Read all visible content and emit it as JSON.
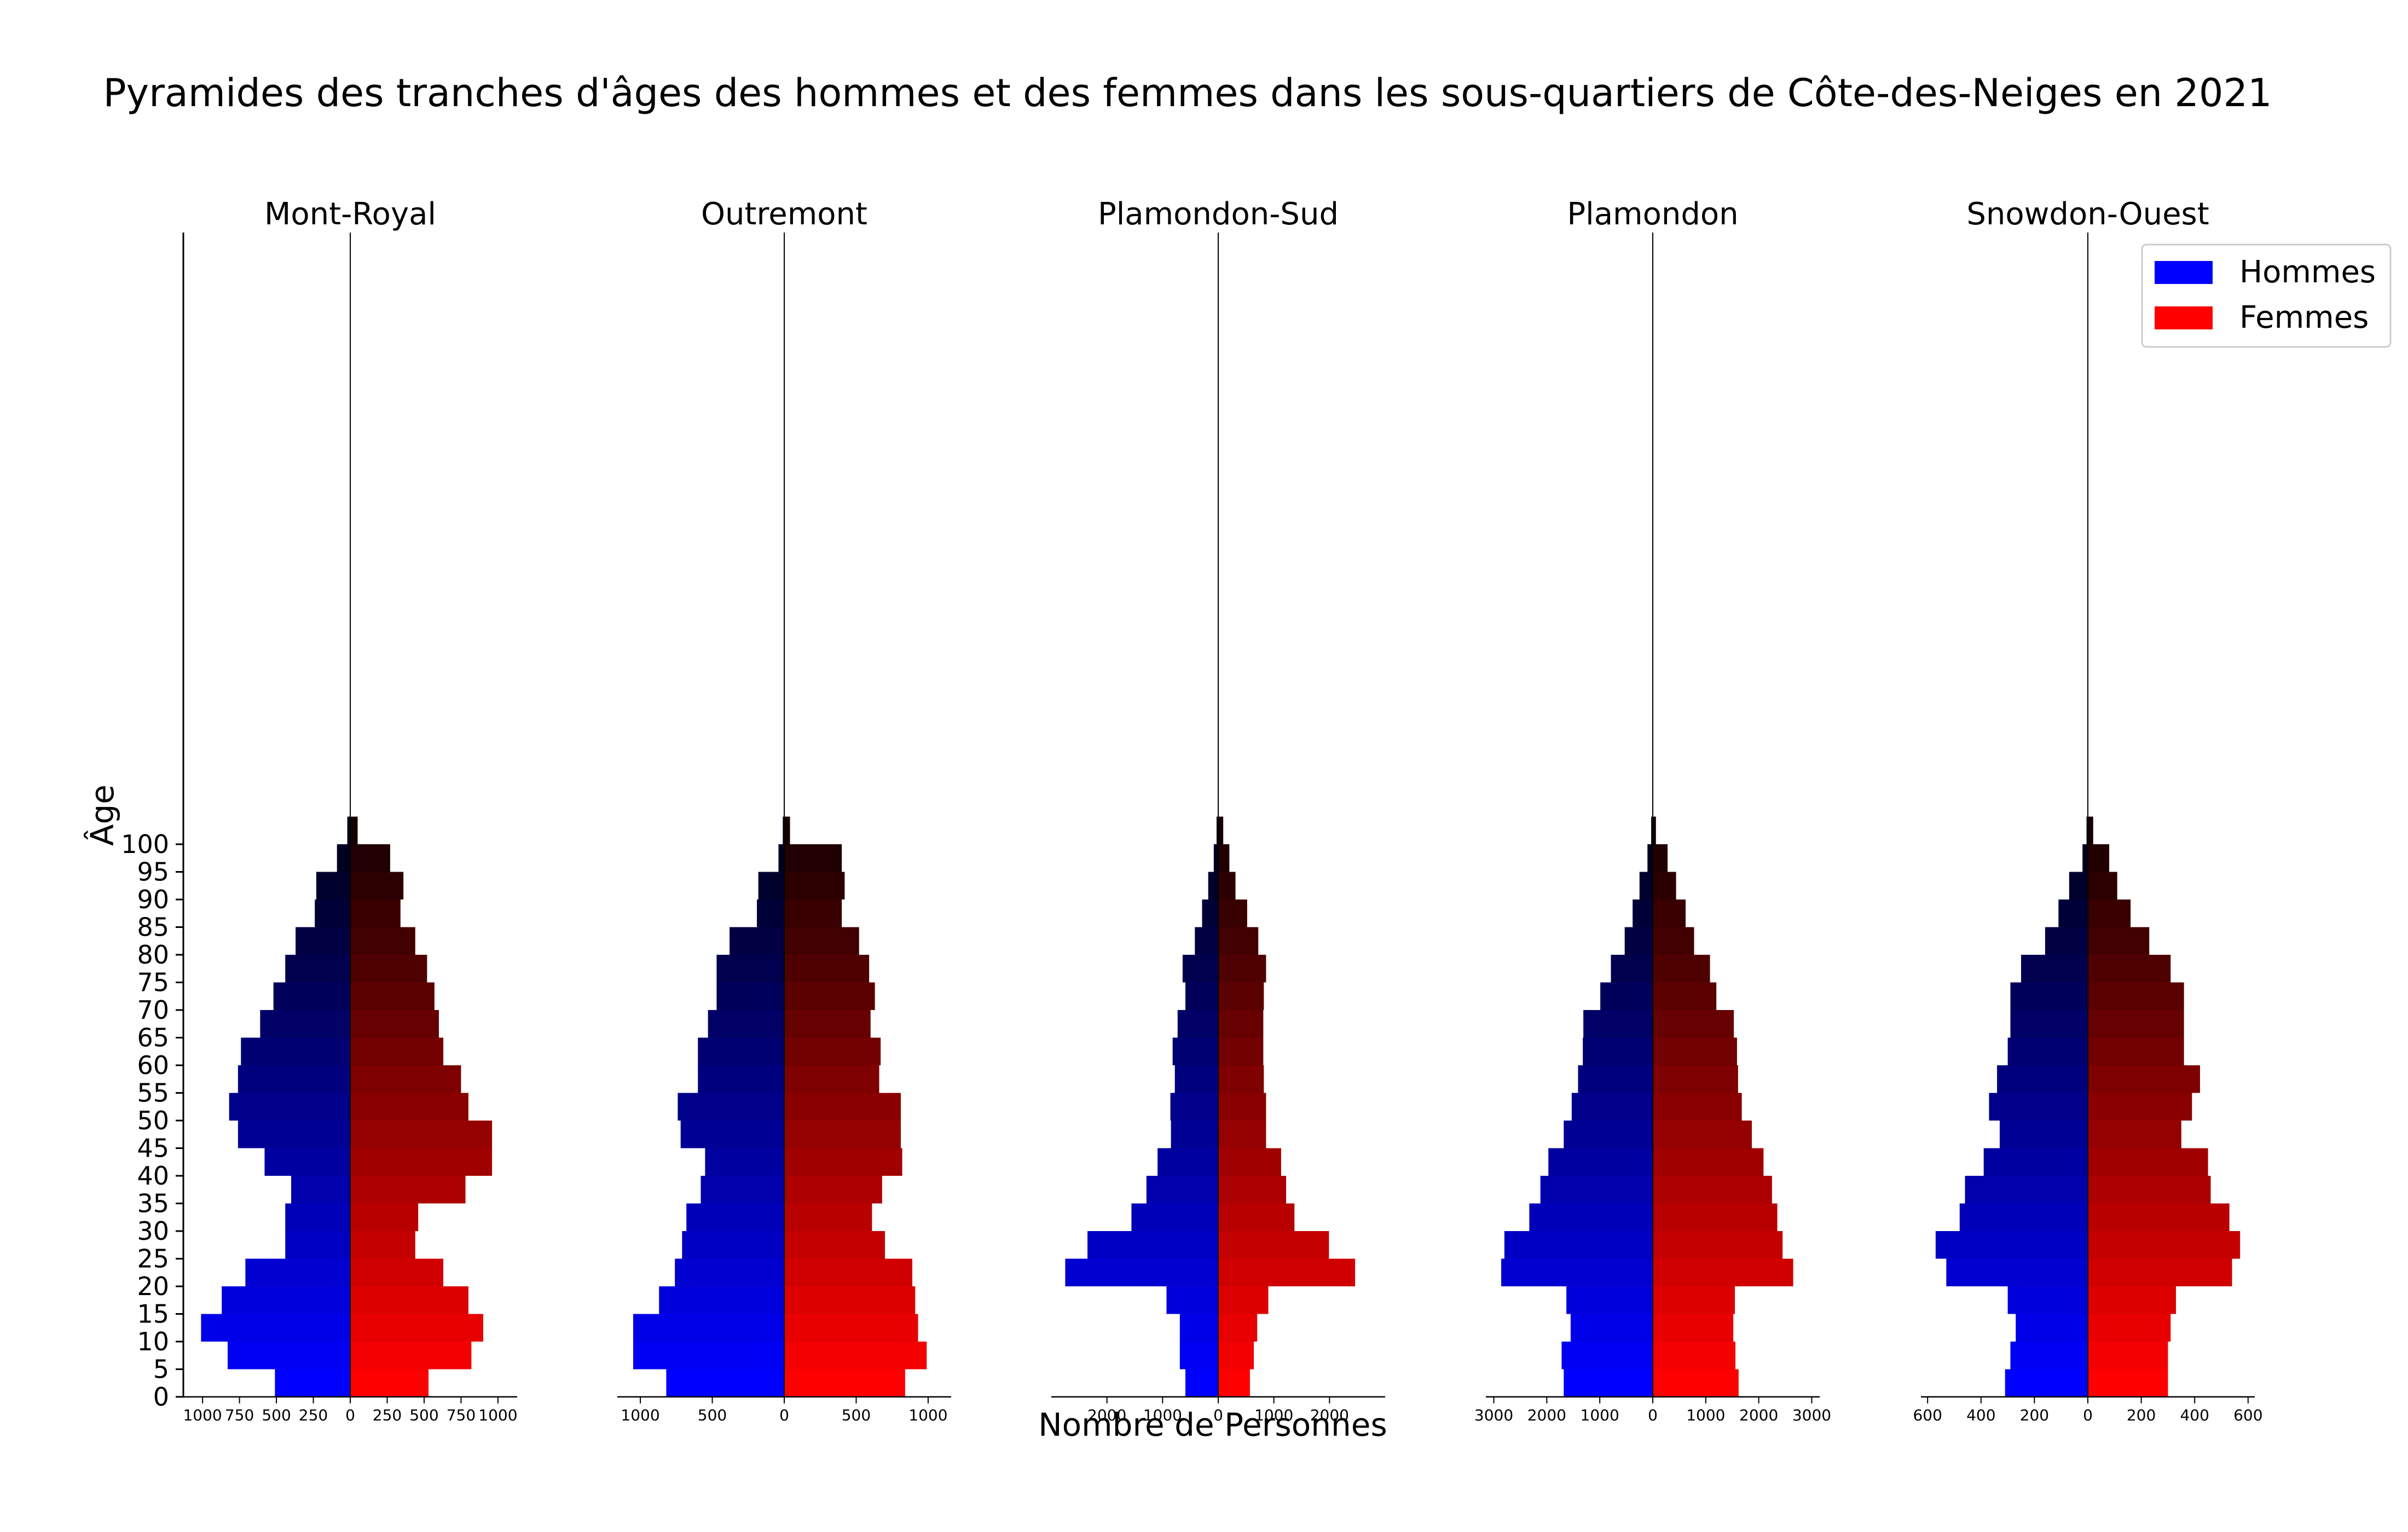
{
  "chart_data": {
    "type": "bar",
    "title": "Pyramides des tranches d'âges des hommes et des femmes dans les sous-quartiers de Côte-des-Neiges en 2021",
    "ylabel": "Âge",
    "xlabel": "Nombre de Personnes",
    "y_ticks": [
      "0",
      "5",
      "10",
      "15",
      "20",
      "25",
      "30",
      "35",
      "40",
      "45",
      "50",
      "55",
      "60",
      "65",
      "70",
      "75",
      "80",
      "85",
      "90",
      "95",
      "100"
    ],
    "age_bins": [
      0,
      5,
      10,
      15,
      20,
      25,
      30,
      35,
      40,
      45,
      50,
      55,
      60,
      65,
      70,
      75,
      80,
      85,
      90,
      95,
      100
    ],
    "legend": [
      {
        "name": "Hommes",
        "color": "#0000ff"
      },
      {
        "name": "Femmes",
        "color": "#ff0000"
      }
    ],
    "legend_position": "top-right",
    "grid": false,
    "panels": [
      {
        "name": "Mont-Royal",
        "xlim": 1130,
        "x_ticks": [
          {
            "v": -1000,
            "t": "1000"
          },
          {
            "v": -750,
            "t": "750"
          },
          {
            "v": -500,
            "t": "500"
          },
          {
            "v": -250,
            "t": "250"
          },
          {
            "v": 0,
            "t": "0"
          },
          {
            "v": 250,
            "t": "250"
          },
          {
            "v": 500,
            "t": "500"
          },
          {
            "v": 750,
            "t": "750"
          },
          {
            "v": 1000,
            "t": "1000"
          }
        ],
        "hommes": [
          510,
          830,
          1010,
          870,
          710,
          440,
          440,
          400,
          580,
          760,
          820,
          760,
          740,
          610,
          520,
          440,
          370,
          240,
          230,
          90,
          20
        ],
        "femmes": [
          530,
          820,
          900,
          800,
          630,
          440,
          460,
          780,
          960,
          960,
          800,
          750,
          630,
          600,
          570,
          520,
          440,
          340,
          360,
          270,
          50
        ]
      },
      {
        "name": "Outremont",
        "xlim": 1160,
        "x_ticks": [
          {
            "v": -1000,
            "t": "1000"
          },
          {
            "v": -500,
            "t": "500"
          },
          {
            "v": 0,
            "t": "0"
          },
          {
            "v": 500,
            "t": "500"
          },
          {
            "v": 1000,
            "t": "1000"
          }
        ],
        "hommes": [
          820,
          1050,
          1050,
          870,
          760,
          710,
          680,
          580,
          550,
          720,
          740,
          600,
          600,
          530,
          470,
          470,
          380,
          190,
          180,
          40,
          10
        ],
        "femmes": [
          840,
          990,
          930,
          910,
          890,
          700,
          610,
          680,
          820,
          810,
          810,
          660,
          670,
          600,
          630,
          590,
          520,
          400,
          420,
          400,
          40
        ]
      },
      {
        "name": "Plamondon-Sud",
        "xlim": 3000,
        "x_ticks": [
          {
            "v": -2000,
            "t": "2000"
          },
          {
            "v": -1000,
            "t": "1000"
          },
          {
            "v": 0,
            "t": "0"
          },
          {
            "v": 1000,
            "t": "1000"
          },
          {
            "v": 2000,
            "t": "2000"
          }
        ],
        "hommes": [
          590,
          690,
          690,
          930,
          2750,
          2350,
          1560,
          1290,
          1090,
          850,
          860,
          780,
          820,
          730,
          590,
          640,
          420,
          290,
          180,
          80,
          30
        ],
        "femmes": [
          570,
          640,
          700,
          900,
          2460,
          1990,
          1370,
          1220,
          1130,
          860,
          860,
          820,
          810,
          810,
          820,
          860,
          720,
          520,
          310,
          200,
          90
        ],
        "partial_axis": true
      },
      {
        "name": "Plamondon",
        "xlim": 3150,
        "x_ticks": [
          {
            "v": -3000,
            "t": "3000"
          },
          {
            "v": -2000,
            "t": "2000"
          },
          {
            "v": -1000,
            "t": "1000"
          },
          {
            "v": 0,
            "t": "0"
          },
          {
            "v": 1000,
            "t": "1000"
          },
          {
            "v": 2000,
            "t": "2000"
          },
          {
            "v": 3000,
            "t": "3000"
          }
        ],
        "hommes": [
          1680,
          1720,
          1550,
          1630,
          2860,
          2800,
          2330,
          2120,
          1970,
          1680,
          1530,
          1410,
          1320,
          1310,
          990,
          790,
          530,
          380,
          250,
          100,
          30
        ],
        "femmes": [
          1620,
          1560,
          1520,
          1550,
          2650,
          2450,
          2350,
          2250,
          2090,
          1870,
          1680,
          1610,
          1590,
          1530,
          1200,
          1080,
          780,
          620,
          440,
          280,
          60
        ]
      },
      {
        "name": "Snowdon-Ouest",
        "xlim": 625,
        "x_ticks": [
          {
            "v": -600,
            "t": "600"
          },
          {
            "v": -400,
            "t": "400"
          },
          {
            "v": -200,
            "t": "200"
          },
          {
            "v": 0,
            "t": "0"
          },
          {
            "v": 200,
            "t": "200"
          },
          {
            "v": 400,
            "t": "400"
          },
          {
            "v": 600,
            "t": "600"
          }
        ],
        "hommes": [
          310,
          290,
          270,
          300,
          530,
          570,
          480,
          460,
          390,
          330,
          370,
          340,
          300,
          290,
          290,
          250,
          160,
          110,
          70,
          20,
          5
        ],
        "femmes": [
          300,
          300,
          310,
          330,
          540,
          570,
          530,
          460,
          450,
          350,
          390,
          420,
          360,
          360,
          360,
          310,
          230,
          160,
          110,
          80,
          20
        ]
      }
    ]
  }
}
